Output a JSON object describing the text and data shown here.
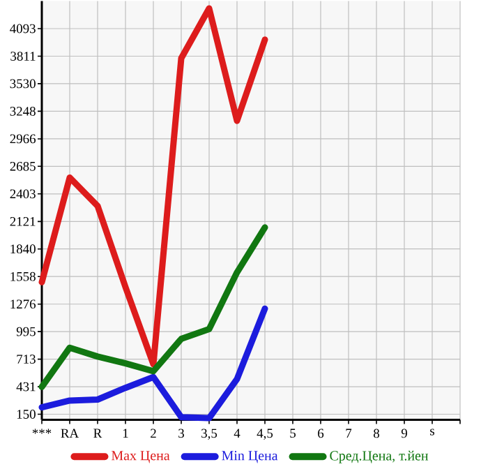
{
  "chart_data": {
    "type": "line",
    "categories": [
      "***",
      "RA",
      "R",
      "1",
      "2",
      "3",
      "3,5",
      "4",
      "4,5",
      "5",
      "6",
      "7",
      "8",
      "9",
      "s"
    ],
    "series": [
      {
        "name": "Max Цена",
        "color": "#dd1c1c",
        "values": [
          1500,
          2570,
          2280,
          1450,
          660,
          3790,
          4300,
          3150,
          3980,
          null,
          null,
          null,
          null,
          null,
          null
        ]
      },
      {
        "name": "Min Цена",
        "color": "#1c1cdd",
        "values": [
          220,
          290,
          300,
          420,
          530,
          120,
          110,
          510,
          1230,
          null,
          null,
          null,
          null,
          null,
          null
        ]
      },
      {
        "name": "Сред.Цена, т.йен",
        "color": "#117711",
        "values": [
          430,
          830,
          740,
          670,
          590,
          920,
          1020,
          1600,
          2060,
          null,
          null,
          null,
          null,
          null,
          null
        ]
      }
    ],
    "ylim": [
      93,
      4375
    ],
    "yticks": [
      150,
      431,
      713,
      995,
      1276,
      1558,
      1840,
      2121,
      2403,
      2685,
      2966,
      3248,
      3530,
      3811,
      4093
    ],
    "grid": true,
    "legend": "bottom",
    "marker": "none",
    "line_style": "solid"
  }
}
